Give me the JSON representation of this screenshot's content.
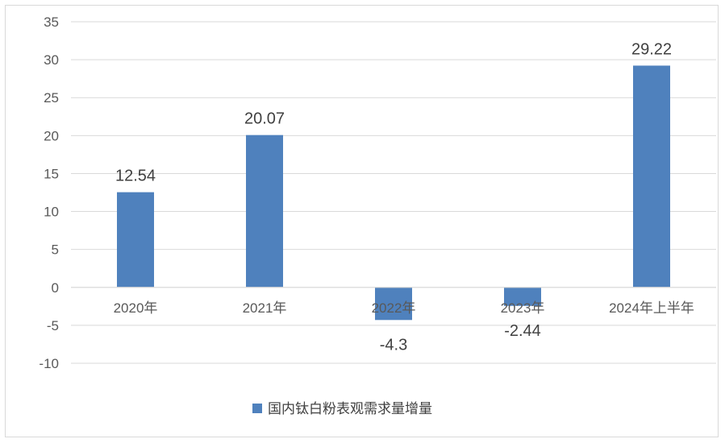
{
  "chart_data": {
    "type": "bar",
    "categories": [
      "2020年",
      "2021年",
      "2022年",
      "2023年",
      "2024年上半年"
    ],
    "series": [
      {
        "name": "国内钛白粉表观需求量增量",
        "values": [
          12.54,
          20.07,
          -4.3,
          -2.44,
          29.22
        ],
        "value_labels": [
          "12.54",
          "20.07",
          "-4.3",
          "-2.44",
          "29.22"
        ],
        "color": "#4f81bd"
      }
    ],
    "yticks": [
      "35",
      "30",
      "25",
      "20",
      "15",
      "10",
      "5",
      "0",
      "-5",
      "-10"
    ],
    "ylim": [
      -10,
      35
    ],
    "grid": true,
    "legend_position": "bottom"
  }
}
